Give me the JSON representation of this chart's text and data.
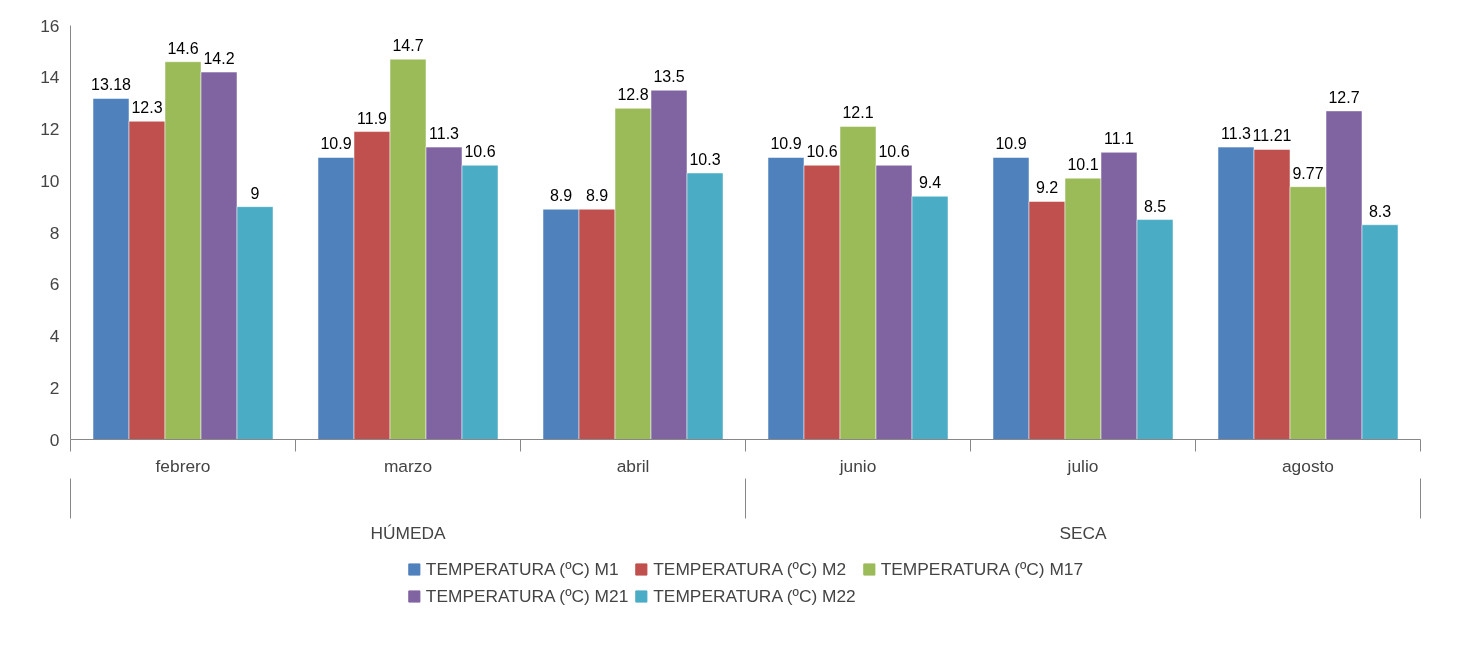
{
  "chart_data": {
    "type": "bar",
    "categories": [
      "febrero",
      "marzo",
      "abril",
      "junio",
      "julio",
      "agosto"
    ],
    "series": [
      {
        "name": "TEMPERATURA (ºC) M1",
        "color": "#4f81bd",
        "values": [
          13.18,
          10.9,
          8.9,
          10.9,
          10.9,
          11.3
        ]
      },
      {
        "name": "TEMPERATURA (ºC) M2",
        "color": "#c0504d",
        "values": [
          12.3,
          11.9,
          8.9,
          10.6,
          9.2,
          11.21
        ]
      },
      {
        "name": "TEMPERATURA (ºC) M17",
        "color": "#9bbb59",
        "values": [
          14.6,
          14.7,
          12.8,
          12.1,
          10.1,
          9.77
        ]
      },
      {
        "name": "TEMPERATURA (ºC) M21",
        "color": "#8064a2",
        "values": [
          14.2,
          11.3,
          13.5,
          10.6,
          11.1,
          12.7
        ]
      },
      {
        "name": "TEMPERATURA (ºC) M22",
        "color": "#4bacc6",
        "values": [
          9,
          10.6,
          10.3,
          9.4,
          8.5,
          8.3
        ]
      }
    ],
    "annotations": [
      "HÚMEDA",
      "SECA"
    ],
    "ylim": [
      0,
      16
    ],
    "yticks": [
      0,
      2,
      4,
      6,
      8,
      10,
      12,
      14,
      16
    ],
    "grid": false,
    "legend": "bottom",
    "data_labels": true
  }
}
